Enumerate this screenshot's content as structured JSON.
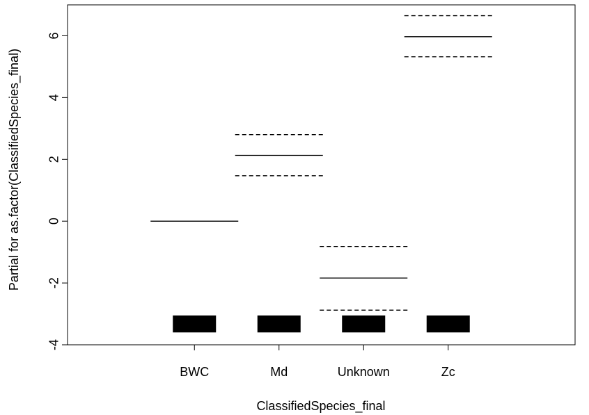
{
  "chart_data": {
    "type": "partial-effects",
    "title": "",
    "xlabel": "ClassifiedSpecies_final",
    "ylabel": "Partial for as.factor(ClassifiedSpecies_final)",
    "categories": [
      "BWC",
      "Md",
      "Unknown",
      "Zc"
    ],
    "ylim": [
      -4,
      7
    ],
    "yticks": [
      -4,
      -2,
      0,
      2,
      4,
      6
    ],
    "ytick_labels": [
      "-4",
      "-2",
      "0",
      "2",
      "4",
      "6"
    ],
    "series": [
      {
        "name": "estimate",
        "style": "solid",
        "values": [
          0,
          2.13,
          -1.84,
          5.97
        ]
      },
      {
        "name": "upper",
        "style": "dashed",
        "values": [
          null,
          2.8,
          -0.82,
          6.65
        ]
      },
      {
        "name": "lower",
        "style": "dashed",
        "values": [
          null,
          1.47,
          -2.88,
          5.32
        ]
      }
    ],
    "rug": {
      "ymin": -3.6,
      "ymax": -3.05
    },
    "grid": false,
    "colors": {
      "line": "#000000",
      "rug": "#000000"
    }
  }
}
